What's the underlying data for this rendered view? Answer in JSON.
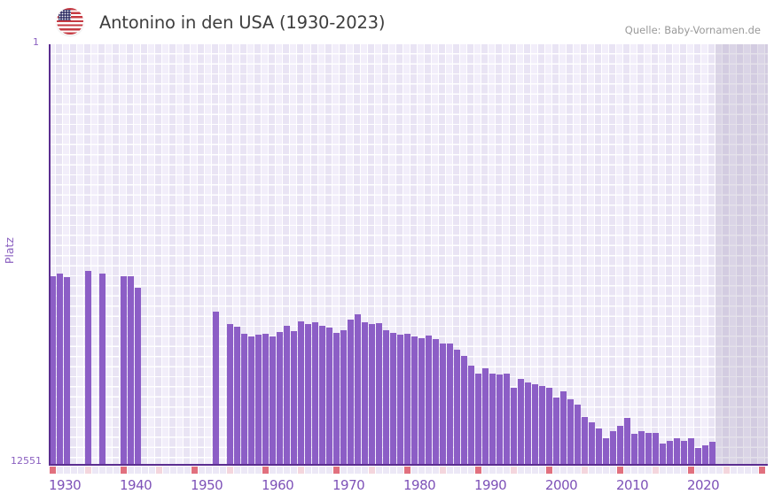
{
  "header": {
    "title": "Antonino in den USA (1930-2023)",
    "source": "Quelle: Baby-Vornamen.de",
    "flag_icon": "us-flag-icon"
  },
  "y_axis": {
    "label": "Platz",
    "top_tick": "1",
    "bottom_tick": "12551"
  },
  "chart_data": {
    "type": "bar",
    "title": "Antonino in den USA (1930-2023)",
    "ylabel": "Platz",
    "xlabel": "",
    "y_range": [
      1,
      12551
    ],
    "y_inverted": true,
    "y_scale": "linear",
    "x_range": [
      1930,
      2030
    ],
    "data_year_range": [
      1930,
      2023
    ],
    "no_data_zone_start": 2024,
    "grid": true,
    "decade_ticks": [
      "1930",
      "1940",
      "1950",
      "1960",
      "1970",
      "1980",
      "1990",
      "2000",
      "2010",
      "2020"
    ],
    "points": [
      {
        "year": 1930,
        "rank": 6940
      },
      {
        "year": 1931,
        "rank": 6860
      },
      {
        "year": 1932,
        "rank": 6965
      },
      {
        "year": 1935,
        "rank": 6780
      },
      {
        "year": 1937,
        "rank": 6860
      },
      {
        "year": 1940,
        "rank": 6940
      },
      {
        "year": 1941,
        "rank": 6950
      },
      {
        "year": 1942,
        "rank": 7280
      },
      {
        "year": 1953,
        "rank": 8000
      },
      {
        "year": 1955,
        "rank": 8370
      },
      {
        "year": 1956,
        "rank": 8450
      },
      {
        "year": 1957,
        "rank": 8660
      },
      {
        "year": 1958,
        "rank": 8740
      },
      {
        "year": 1959,
        "rank": 8690
      },
      {
        "year": 1960,
        "rank": 8660
      },
      {
        "year": 1961,
        "rank": 8740
      },
      {
        "year": 1962,
        "rank": 8610
      },
      {
        "year": 1963,
        "rank": 8420
      },
      {
        "year": 1964,
        "rank": 8580
      },
      {
        "year": 1965,
        "rank": 8290
      },
      {
        "year": 1966,
        "rank": 8370
      },
      {
        "year": 1967,
        "rank": 8320
      },
      {
        "year": 1968,
        "rank": 8420
      },
      {
        "year": 1969,
        "rank": 8470
      },
      {
        "year": 1970,
        "rank": 8630
      },
      {
        "year": 1971,
        "rank": 8550
      },
      {
        "year": 1972,
        "rank": 8240
      },
      {
        "year": 1973,
        "rank": 8080
      },
      {
        "year": 1974,
        "rank": 8320
      },
      {
        "year": 1975,
        "rank": 8370
      },
      {
        "year": 1976,
        "rank": 8340
      },
      {
        "year": 1977,
        "rank": 8550
      },
      {
        "year": 1978,
        "rank": 8630
      },
      {
        "year": 1979,
        "rank": 8690
      },
      {
        "year": 1980,
        "rank": 8660
      },
      {
        "year": 1981,
        "rank": 8740
      },
      {
        "year": 1982,
        "rank": 8790
      },
      {
        "year": 1983,
        "rank": 8710
      },
      {
        "year": 1984,
        "rank": 8820
      },
      {
        "year": 1985,
        "rank": 8950
      },
      {
        "year": 1986,
        "rank": 8950
      },
      {
        "year": 1987,
        "rank": 9140
      },
      {
        "year": 1988,
        "rank": 9320
      },
      {
        "year": 1989,
        "rank": 9610
      },
      {
        "year": 1990,
        "rank": 9850
      },
      {
        "year": 1991,
        "rank": 9690
      },
      {
        "year": 1992,
        "rank": 9850
      },
      {
        "year": 1993,
        "rank": 9880
      },
      {
        "year": 1994,
        "rank": 9850
      },
      {
        "year": 1995,
        "rank": 10270
      },
      {
        "year": 1996,
        "rank": 10010
      },
      {
        "year": 1997,
        "rank": 10120
      },
      {
        "year": 1998,
        "rank": 10170
      },
      {
        "year": 1999,
        "rank": 10220
      },
      {
        "year": 2000,
        "rank": 10270
      },
      {
        "year": 2001,
        "rank": 10570
      },
      {
        "year": 2002,
        "rank": 10380
      },
      {
        "year": 2003,
        "rank": 10620
      },
      {
        "year": 2004,
        "rank": 10780
      },
      {
        "year": 2005,
        "rank": 11150
      },
      {
        "year": 2006,
        "rank": 11310
      },
      {
        "year": 2007,
        "rank": 11490
      },
      {
        "year": 2008,
        "rank": 11780
      },
      {
        "year": 2009,
        "rank": 11570
      },
      {
        "year": 2010,
        "rank": 11410
      },
      {
        "year": 2011,
        "rank": 11170
      },
      {
        "year": 2012,
        "rank": 11650
      },
      {
        "year": 2013,
        "rank": 11570
      },
      {
        "year": 2014,
        "rank": 11630
      },
      {
        "year": 2015,
        "rank": 11630
      },
      {
        "year": 2016,
        "rank": 11940
      },
      {
        "year": 2017,
        "rank": 11860
      },
      {
        "year": 2018,
        "rank": 11780
      },
      {
        "year": 2019,
        "rank": 11860
      },
      {
        "year": 2020,
        "rank": 11780
      },
      {
        "year": 2021,
        "rank": 12080
      },
      {
        "year": 2022,
        "rank": 12000
      },
      {
        "year": 2023,
        "rank": 11890
      }
    ]
  },
  "colors": {
    "bar": "#8c5ec6",
    "axis_line": "#5b2d90",
    "axis_text": "#7e52b8",
    "cell_light": "#f2eefa",
    "cell_dark": "#e9e4f4",
    "tick_square_decade": "#e1707e",
    "tick_square_half_decade": "#f4d6dd",
    "tick_square_year": "#ece8f6",
    "title_text": "#3e3e3e",
    "source_text": "#999999"
  }
}
